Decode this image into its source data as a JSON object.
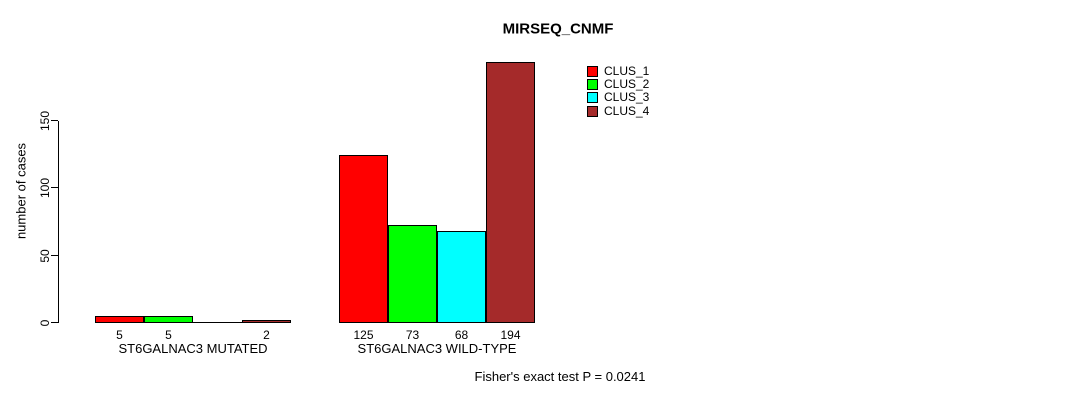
{
  "title": "MIRSEQ_CNMF",
  "footer": "Fisher's exact test P = 0.0241",
  "chart_data": {
    "type": "bar",
    "title": "MIRSEQ_CNMF",
    "xlabel": "",
    "ylabel": "number of cases",
    "ylim": [
      0,
      150
    ],
    "yticks": [
      0,
      50,
      100,
      150
    ],
    "grid": false,
    "legend_position": "top-right",
    "categories": [
      "ST6GALNAC3 MUTATED",
      "ST6GALNAC3 WILD-TYPE"
    ],
    "series": [
      {
        "name": "CLUS_1",
        "color": "#ff0000",
        "values": [
          5,
          125
        ]
      },
      {
        "name": "CLUS_2",
        "color": "#00ff00",
        "values": [
          5,
          73
        ]
      },
      {
        "name": "CLUS_3",
        "color": "#00ffff",
        "values": [
          0,
          68
        ]
      },
      {
        "name": "CLUS_4",
        "color": "#a52a2a",
        "values": [
          2,
          194
        ]
      }
    ],
    "bar_value_labels": [
      "5",
      "5",
      "",
      "2",
      "125",
      "73",
      "68",
      "194"
    ],
    "annotation": "Fisher's exact test P = 0.0241"
  }
}
